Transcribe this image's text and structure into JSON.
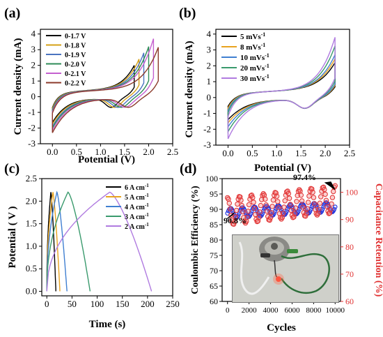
{
  "colors": {
    "cv_a": [
      "#000000",
      "#d4a017",
      "#4a74c0",
      "#2e8b57",
      "#c45fcf",
      "#8b3a2b"
    ],
    "cv_b": [
      "#000000",
      "#e8a31f",
      "#3f7fd1",
      "#3a9a6d",
      "#b07be0"
    ],
    "gcd": [
      "#000000",
      "#e8a31f",
      "#3f7fd1",
      "#3a9a6d",
      "#b07be0"
    ],
    "ce": "#2233dd",
    "retention": "#e03030",
    "retention_axis": "#e03030"
  },
  "chart_data": [
    {
      "panel": "(a)",
      "type": "line",
      "xlabel": "Potential (V)",
      "ylabel": "Current density (mA)",
      "xlim": [
        -0.25,
        2.5
      ],
      "ylim": [
        -3,
        4.3
      ],
      "xticks": [
        "0.0",
        "0.5",
        "1.0",
        "1.5",
        "2.0",
        "2.5"
      ],
      "yticks": [
        "-3",
        "-2",
        "-1",
        "0",
        "1",
        "2",
        "3",
        "4"
      ],
      "legend": "top-left",
      "series": [
        {
          "name": "0-1.7 V",
          "vmax": 1.7,
          "imax": 2.15,
          "imin": -1.7
        },
        {
          "name": "0-1.8 V",
          "vmax": 1.8,
          "imax": 2.55,
          "imin": -1.8
        },
        {
          "name": "0-1.9 V",
          "vmax": 1.9,
          "imax": 2.95,
          "imin": -1.95
        },
        {
          "name": "0-2.0 V",
          "vmax": 2.0,
          "imax": 3.35,
          "imin": -2.05
        },
        {
          "name": "0-2.1 V",
          "vmax": 2.1,
          "imax": 3.85,
          "imin": -2.2
        },
        {
          "name": "0-2.2 V",
          "vmax": 2.2,
          "imax": 3.3,
          "imin": -2.35
        }
      ]
    },
    {
      "panel": "(b)",
      "type": "line",
      "xlabel": "Potential (V)",
      "ylabel": "Current density (mA)",
      "xlim": [
        -0.25,
        2.5
      ],
      "ylim": [
        -3,
        4.3
      ],
      "xticks": [
        "0.0",
        "0.5",
        "1.0",
        "1.5",
        "2.0",
        "2.5"
      ],
      "yticks": [
        "-3",
        "-2",
        "-1",
        "0",
        "1",
        "2",
        "3",
        "4"
      ],
      "legend": "top-left",
      "series": [
        {
          "name": "5 mVs",
          "sup": "-1",
          "vmax": 2.2,
          "imax": 2.35,
          "imin": -1.45
        },
        {
          "name": "8 mVs",
          "sup": "-1",
          "vmax": 2.2,
          "imax": 2.6,
          "imin": -1.65
        },
        {
          "name": "10 mVs",
          "sup": "-1",
          "vmax": 2.2,
          "imax": 2.85,
          "imin": -1.9
        },
        {
          "name": "20 mVs",
          "sup": "-1",
          "vmax": 2.2,
          "imax": 3.4,
          "imin": -2.2
        },
        {
          "name": "30 mVs",
          "sup": "-1",
          "vmax": 2.2,
          "imax": 3.95,
          "imin": -2.65
        }
      ]
    },
    {
      "panel": "(c)",
      "type": "line",
      "xlabel": "Time (s)",
      "ylabel": "Potential ( V )",
      "xlim": [
        -10,
        250
      ],
      "ylim": [
        -0.1,
        2.5
      ],
      "xticks": [
        "0",
        "50",
        "100",
        "150",
        "200",
        "250"
      ],
      "yticks": [
        "0.0",
        "0.5",
        "1.0",
        "1.5",
        "2.0",
        "2.5"
      ],
      "legend": "top-right",
      "series": [
        {
          "name": "6 A cm",
          "sup": "-1",
          "tc": 8,
          "td": 18
        },
        {
          "name": "5 A cm",
          "sup": "-1",
          "tc": 12,
          "td": 26
        },
        {
          "name": "4 A cm",
          "sup": "-1",
          "tc": 20,
          "td": 40
        },
        {
          "name": "3 A cm",
          "sup": "-1",
          "tc": 42,
          "td": 86
        },
        {
          "name": "2 A cm",
          "sup": "-1",
          "tc": 125,
          "td": 208
        }
      ]
    },
    {
      "panel": "(d)",
      "type": "scatter",
      "xlabel": "Cycles",
      "ylabel": "Coulombic Efficiency (%)",
      "y2label": "Capacitance Retention (%)",
      "xlim": [
        -500,
        10500
      ],
      "ylim": [
        60,
        100
      ],
      "y2lim": [
        60,
        105
      ],
      "xticks": [
        "0",
        "2000",
        "4000",
        "6000",
        "8000",
        "10000"
      ],
      "yticks": [
        "60",
        "65",
        "70",
        "75",
        "80",
        "85",
        "90",
        "95",
        "100"
      ],
      "y2ticks": [
        "60",
        "70",
        "80",
        "90",
        "100"
      ],
      "annotations": [
        "90.8%",
        "97.4%"
      ],
      "series": [
        {
          "name": "Coulombic Efficiency",
          "start": 88.7,
          "end": 90.8,
          "amp": 1.6,
          "periods": 9
        },
        {
          "name": "Capacitance Retention",
          "start": 93,
          "end": 97.4,
          "amp": 5,
          "periods": 9
        }
      ]
    }
  ],
  "panel_labels": [
    "(a)",
    "(b)",
    "(c)",
    "(d)"
  ]
}
